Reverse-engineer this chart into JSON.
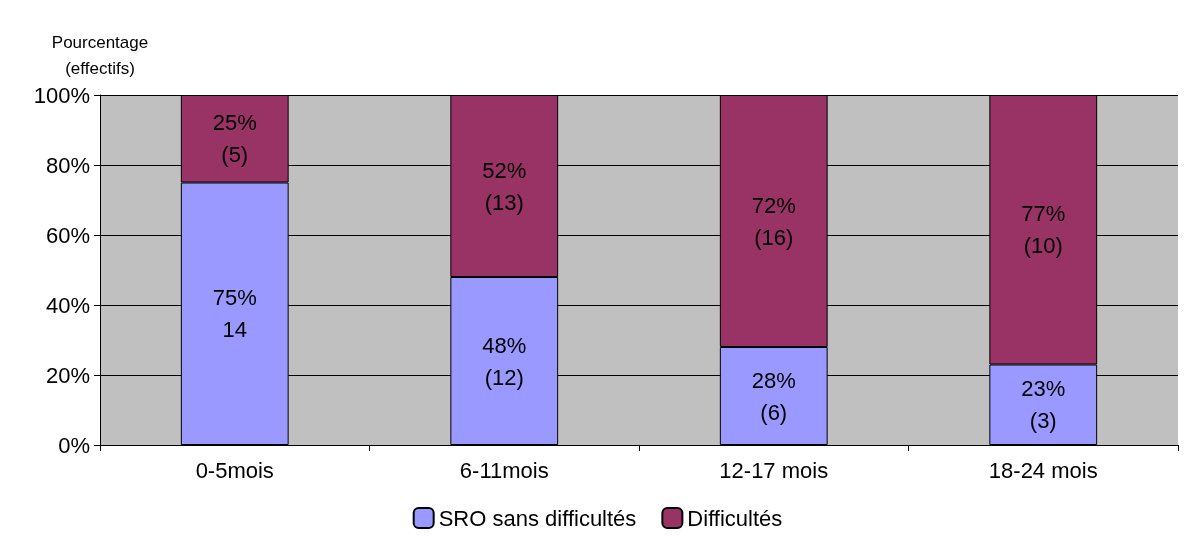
{
  "chart_data": {
    "type": "bar",
    "stacked": true,
    "ylabel": "Pourcentage\n(effectifs)",
    "categories": [
      "0-5mois",
      "6-11mois",
      "12-17 mois",
      "18-24 mois"
    ],
    "series": [
      {
        "name": "SRO sans difficultés",
        "color": "#9999ff",
        "values": [
          75,
          48,
          28,
          23
        ],
        "value_labels": [
          "75%\n14",
          "48%\n(12)",
          "28%\n(6)",
          "23%\n(3)"
        ]
      },
      {
        "name": "Difficultés",
        "color": "#993366",
        "values": [
          25,
          52,
          72,
          77
        ],
        "value_labels": [
          "25%\n(5)",
          "52%\n(13)",
          "72%\n(16)",
          "77%\n(10)"
        ]
      }
    ],
    "ylim": [
      0,
      100
    ],
    "yticks": [
      {
        "value": 0,
        "label": "0%"
      },
      {
        "value": 20,
        "label": "20%"
      },
      {
        "value": 40,
        "label": "40%"
      },
      {
        "value": 60,
        "label": "60%"
      },
      {
        "value": 80,
        "label": "80%"
      },
      {
        "value": 100,
        "label": "100%"
      }
    ],
    "grid": "y",
    "legend": "bottom"
  }
}
